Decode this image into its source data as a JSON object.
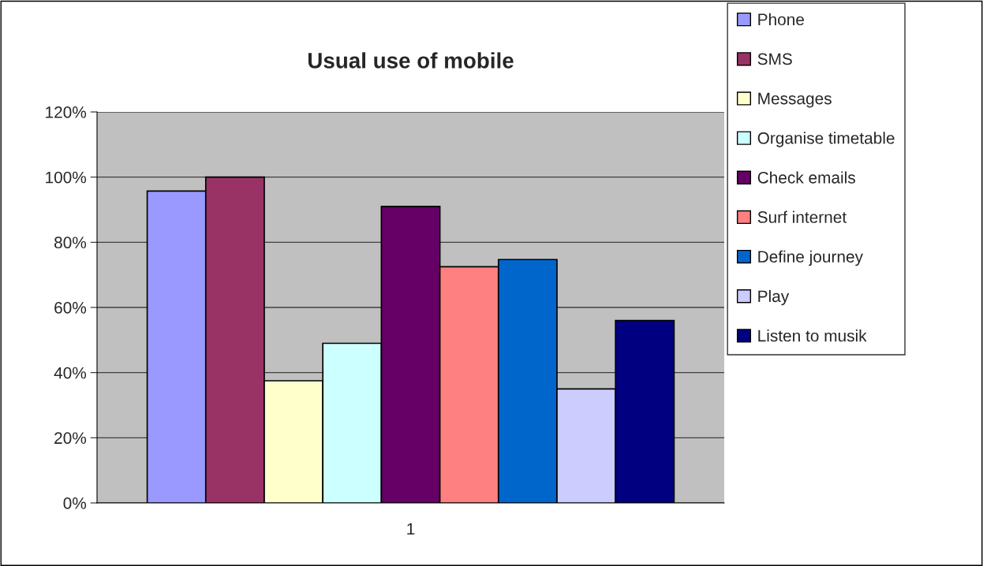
{
  "chart_data": {
    "type": "bar",
    "title": "Usual use of mobile",
    "categories": [
      "1"
    ],
    "series": [
      {
        "name": "Phone",
        "color": "#9999ff",
        "values": [
          95.7
        ]
      },
      {
        "name": "SMS",
        "color": "#993366",
        "values": [
          100
        ]
      },
      {
        "name": "Messages",
        "color": "#ffffcc",
        "values": [
          37.5
        ]
      },
      {
        "name": "Organise timetable",
        "color": "#ccffff",
        "values": [
          49
        ]
      },
      {
        "name": "Check emails",
        "color": "#660066",
        "values": [
          91
        ]
      },
      {
        "name": "Surf internet",
        "color": "#ff8080",
        "values": [
          72.5
        ]
      },
      {
        "name": "Define journey",
        "color": "#0066cc",
        "values": [
          74.7
        ]
      },
      {
        "name": "Play",
        "color": "#ccccff",
        "values": [
          35
        ]
      },
      {
        "name": "Listen to musik",
        "color": "#000080",
        "values": [
          56
        ]
      }
    ],
    "ylim": [
      0,
      120
    ],
    "yticks": [
      {
        "value": 0,
        "label": "0%"
      },
      {
        "value": 20,
        "label": "20%"
      },
      {
        "value": 40,
        "label": "40%"
      },
      {
        "value": 60,
        "label": "60%"
      },
      {
        "value": 80,
        "label": "80%"
      },
      {
        "value": 100,
        "label": "100%"
      },
      {
        "value": 120,
        "label": "120%"
      }
    ],
    "grid": "y",
    "legend": "right"
  }
}
